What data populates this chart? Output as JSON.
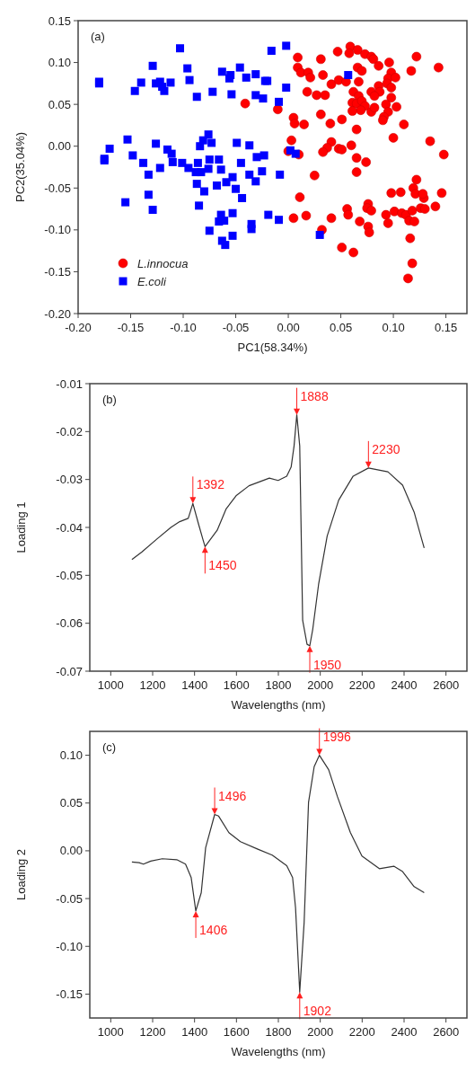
{
  "chart_data": [
    {
      "type": "scatter",
      "xlabel": "PC1(58.34%)",
      "ylabel": "PC2(35.04%)",
      "annotations": [
        "(a)"
      ],
      "legend": "bottom left",
      "grid": false,
      "xlim": [
        -0.2,
        0.17
      ],
      "xticks": [
        {
          "value": -0.2,
          "label": "-0.20"
        },
        {
          "value": -0.15,
          "label": "-0.15"
        },
        {
          "value": -0.1,
          "label": "-0.10"
        },
        {
          "value": -0.05,
          "label": "-0.05"
        },
        {
          "value": 0,
          "label": "0.00"
        },
        {
          "value": 0.05,
          "label": "0.05"
        },
        {
          "value": 0.1,
          "label": "0.10"
        },
        {
          "value": 0.15,
          "label": "0.15"
        }
      ],
      "ylim": [
        -0.2,
        0.15
      ],
      "yticks": [
        {
          "value": -0.2,
          "label": "-0.20"
        },
        {
          "value": -0.15,
          "label": "-0.15"
        },
        {
          "value": -0.1,
          "label": "-0.10"
        },
        {
          "value": -0.05,
          "label": "-0.05"
        },
        {
          "value": 0,
          "label": "0.00"
        },
        {
          "value": 0.05,
          "label": "0.05"
        },
        {
          "value": 0.1,
          "label": "0.10"
        },
        {
          "value": 0.15,
          "label": "0.15"
        }
      ],
      "series": [
        {
          "name": "L.innocua",
          "color": "#ff0000",
          "marker": "circle",
          "x": [
            -0.041,
            0.009,
            0.031,
            0.047,
            0.059,
            0.058,
            0.066,
            0.073,
            0.079,
            0.081,
            0.096,
            0.122,
            0.143,
            0.117,
            0.086,
            0.009,
            0.012,
            0.019,
            0.021,
            0.033,
            0.041,
            0.048,
            0.055,
            0.066,
            0.07,
            0.067,
            0.098,
            0.095,
            0.102,
            0.094,
            0.098,
            0.018,
            0.027,
            0.035,
            0.062,
            0.067,
            0.079,
            0.086,
            0.087,
            0.082,
            0.098,
            0.061,
            0.065,
            0.07,
            0.073,
            0.069,
            0.061,
            0.079,
            0.082,
            0.093,
            0.103,
            0.095,
            0.091,
            0.09,
            -0.01,
            0.005,
            0.006,
            0.015,
            0.031,
            0.04,
            0.051,
            0.065,
            0.11,
            0.1,
            0.135,
            0.148,
            0.003,
            0.041,
            0.037,
            0.033,
            0.048,
            0.051,
            0.06,
            0.065,
            0.074,
            0.065,
            0.025,
            0.122,
            0.0,
            0.01,
            0.011,
            0.005,
            0.017,
            0.119,
            0.121,
            0.129,
            0.128,
            0.098,
            0.107,
            0.146,
            0.056,
            0.057,
            0.041,
            0.068,
            0.076,
            0.075,
            0.079,
            0.076,
            0.077,
            0.093,
            0.095,
            0.101,
            0.108,
            0.112,
            0.115,
            0.12,
            0.118,
            0.126,
            0.13,
            0.14,
            0.116,
            0.118,
            0.114,
            0.032,
            0.051,
            0.062
          ],
          "values": [
            0.051,
            0.106,
            0.104,
            0.113,
            0.119,
            0.111,
            0.115,
            0.11,
            0.107,
            0.104,
            0.1,
            0.107,
            0.094,
            0.09,
            0.096,
            0.094,
            0.088,
            0.088,
            0.082,
            0.085,
            0.074,
            0.079,
            0.077,
            0.094,
            0.09,
            0.077,
            0.088,
            0.081,
            0.082,
            0.075,
            0.07,
            0.065,
            0.061,
            0.061,
            0.065,
            0.06,
            0.065,
            0.072,
            0.065,
            0.06,
            0.058,
            0.052,
            0.051,
            0.054,
            0.048,
            0.043,
            0.042,
            0.041,
            0.046,
            0.05,
            0.047,
            0.041,
            0.035,
            0.031,
            0.044,
            0.034,
            0.027,
            0.026,
            0.038,
            0.027,
            0.032,
            0.02,
            0.026,
            0.01,
            0.006,
            -0.01,
            0.007,
            0.005,
            -0.002,
            -0.007,
            -0.003,
            -0.004,
            0.001,
            -0.014,
            -0.019,
            -0.031,
            -0.035,
            -0.04,
            -0.006,
            -0.01,
            -0.061,
            -0.086,
            -0.083,
            -0.05,
            -0.057,
            -0.062,
            -0.057,
            -0.056,
            -0.055,
            -0.056,
            -0.075,
            -0.082,
            -0.086,
            -0.09,
            -0.069,
            -0.074,
            -0.077,
            -0.096,
            -0.103,
            -0.082,
            -0.092,
            -0.078,
            -0.08,
            -0.082,
            -0.089,
            -0.09,
            -0.077,
            -0.074,
            -0.075,
            -0.072,
            -0.11,
            -0.14,
            -0.158,
            -0.1,
            -0.121,
            -0.127
          ]
        },
        {
          "name": "E.coli",
          "color": "#0000ff",
          "marker": "square",
          "x": [
            -0.18,
            -0.18,
            -0.146,
            -0.14,
            -0.129,
            -0.126,
            -0.122,
            -0.12,
            -0.118,
            -0.112,
            -0.103,
            -0.096,
            -0.094,
            -0.087,
            -0.072,
            -0.063,
            -0.055,
            -0.056,
            -0.054,
            -0.046,
            -0.04,
            -0.031,
            -0.031,
            -0.024,
            -0.022,
            -0.016,
            -0.002,
            -0.02,
            -0.002,
            -0.009,
            0.057,
            -0.037,
            -0.03,
            -0.023,
            0.002,
            0.007,
            -0.025,
            -0.008,
            -0.037,
            -0.175,
            -0.175,
            -0.17,
            -0.153,
            -0.148,
            -0.155,
            -0.138,
            -0.133,
            -0.133,
            -0.129,
            -0.126,
            -0.122,
            -0.115,
            -0.111,
            -0.11,
            -0.101,
            -0.095,
            -0.086,
            -0.088,
            -0.083,
            -0.084,
            -0.081,
            -0.076,
            -0.073,
            -0.075,
            -0.076,
            -0.087,
            -0.08,
            -0.085,
            -0.075,
            -0.066,
            -0.064,
            -0.068,
            -0.059,
            -0.053,
            -0.05,
            -0.049,
            -0.045,
            -0.044,
            -0.064,
            -0.066,
            -0.061,
            -0.063,
            -0.06,
            -0.053,
            -0.053,
            -0.031,
            -0.035,
            -0.035,
            -0.019,
            -0.009,
            0.03
          ],
          "values": [
            0.075,
            0.077,
            0.066,
            0.076,
            0.096,
            0.075,
            0.077,
            0.071,
            0.066,
            0.076,
            0.117,
            0.093,
            0.079,
            0.059,
            0.065,
            0.089,
            0.085,
            0.081,
            0.062,
            0.094,
            0.082,
            0.086,
            0.061,
            0.057,
            0.078,
            0.114,
            0.12,
            0.078,
            0.07,
            0.053,
            0.085,
            0.001,
            -0.013,
            -0.011,
            -0.005,
            -0.009,
            -0.03,
            -0.034,
            -0.034,
            -0.015,
            -0.017,
            -0.003,
            0.008,
            -0.011,
            -0.067,
            -0.02,
            -0.034,
            -0.058,
            -0.076,
            0.003,
            -0.026,
            -0.004,
            -0.009,
            -0.019,
            -0.02,
            -0.026,
            -0.02,
            -0.031,
            -0.031,
            0.0,
            0.007,
            0.014,
            0.004,
            -0.016,
            -0.027,
            -0.045,
            -0.054,
            -0.071,
            -0.101,
            -0.016,
            -0.028,
            -0.047,
            -0.043,
            -0.037,
            -0.051,
            0.004,
            -0.02,
            -0.062,
            -0.082,
            -0.09,
            -0.089,
            -0.113,
            -0.118,
            -0.08,
            -0.107,
            -0.042,
            -0.093,
            -0.099,
            -0.082,
            -0.088,
            -0.106
          ]
        }
      ]
    },
    {
      "type": "line",
      "xlabel": "Wavelengths (nm)",
      "ylabel": "Loading 1",
      "grid": false,
      "annotations": [
        "(b)",
        {
          "text": "1392",
          "x": 1392,
          "y": -0.035
        },
        {
          "text": "1450",
          "x": 1450,
          "y": -0.044
        },
        {
          "text": "1888",
          "x": 1888,
          "y": -0.0165
        },
        {
          "text": "1950",
          "x": 1950,
          "y": -0.0647
        },
        {
          "text": "2230",
          "x": 2230,
          "y": -0.0276
        }
      ],
      "xlim": [
        900,
        2700
      ],
      "xticks": [
        1000,
        1200,
        1400,
        1600,
        1800,
        2000,
        2200,
        2400,
        2600
      ],
      "ylim": [
        -0.07,
        -0.01
      ],
      "yticks": [
        -0.07,
        -0.06,
        -0.05,
        -0.04,
        -0.03,
        -0.02,
        -0.01
      ],
      "x": [
        1101,
        1149,
        1218,
        1287,
        1329,
        1370,
        1392,
        1419,
        1440,
        1450,
        1508,
        1550,
        1598,
        1660,
        1757,
        1799,
        1840,
        1861,
        1875,
        1888,
        1902,
        1916,
        1937,
        1950,
        1964,
        1992,
        2033,
        2088,
        2157,
        2230,
        2323,
        2393,
        2448,
        2476,
        2496
      ],
      "series": [
        {
          "color": "#333333",
          "values": [
            -0.0467,
            -0.0451,
            -0.0425,
            -0.04,
            -0.0388,
            -0.0381,
            -0.035,
            -0.0393,
            -0.0425,
            -0.044,
            -0.0406,
            -0.0362,
            -0.0334,
            -0.0313,
            -0.0297,
            -0.0302,
            -0.0293,
            -0.0274,
            -0.023,
            -0.0165,
            -0.023,
            -0.0594,
            -0.0644,
            -0.0647,
            -0.0613,
            -0.0519,
            -0.0418,
            -0.0343,
            -0.0293,
            -0.0276,
            -0.0284,
            -0.0312,
            -0.0368,
            -0.0412,
            -0.0443
          ]
        }
      ]
    },
    {
      "type": "line",
      "xlabel": "Wavelengths (nm)",
      "ylabel": "Loading 2",
      "grid": false,
      "annotations": [
        "(c)",
        {
          "text": "1496",
          "x": 1496,
          "y": 0.038
        },
        {
          "text": "1406",
          "x": 1406,
          "y": -0.063
        },
        {
          "text": "1996",
          "x": 1996,
          "y": 0.1
        },
        {
          "text": "1902",
          "x": 1902,
          "y": -0.148
        }
      ],
      "xlim": [
        900,
        2700
      ],
      "xticks": [
        1000,
        1200,
        1400,
        1600,
        1800,
        2000,
        2200,
        2400,
        2600
      ],
      "ylim": [
        -0.175,
        0.125
      ],
      "yticks": [
        {
          "value": -0.15,
          "label": "-0.15"
        },
        {
          "value": -0.1,
          "label": "-0.10"
        },
        {
          "value": -0.05,
          "label": "-0.05"
        },
        {
          "value": 0,
          "label": "0.00"
        },
        {
          "value": 0.05,
          "label": "0.05"
        },
        {
          "value": 0.1,
          "label": "0.10"
        }
      ],
      "x": [
        1101,
        1135,
        1156,
        1191,
        1246,
        1315,
        1357,
        1384,
        1406,
        1432,
        1453,
        1496,
        1515,
        1564,
        1619,
        1702,
        1771,
        1840,
        1868,
        1882,
        1902,
        1923,
        1944,
        1971,
        1996,
        2040,
        2082,
        2144,
        2199,
        2282,
        2351,
        2393,
        2448,
        2496
      ],
      "series": [
        {
          "color": "#333333",
          "values": [
            -0.0117,
            -0.0124,
            -0.014,
            -0.0108,
            -0.0083,
            -0.0093,
            -0.014,
            -0.0281,
            -0.063,
            -0.0438,
            0.0033,
            0.038,
            0.0363,
            0.019,
            0.0096,
            0.0017,
            -0.0046,
            -0.0155,
            -0.0281,
            -0.0595,
            -0.148,
            -0.0752,
            0.0505,
            0.0881,
            0.1,
            0.0849,
            0.0567,
            0.019,
            -0.0055,
            -0.0187,
            -0.0161,
            -0.0218,
            -0.0375,
            -0.0438
          ]
        }
      ]
    }
  ]
}
